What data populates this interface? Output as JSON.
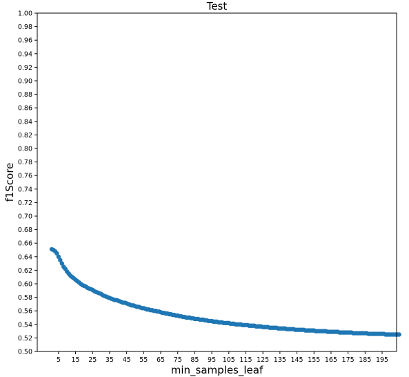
{
  "chart_data": {
    "type": "scatter",
    "title": "Test",
    "xlabel": "min_samples_leaf",
    "ylabel": "f1Score",
    "xlim": [
      -7.5,
      203.5
    ],
    "ylim": [
      0.5,
      1.0
    ],
    "x_ticks": [
      5,
      15,
      25,
      35,
      45,
      55,
      65,
      75,
      85,
      95,
      105,
      115,
      125,
      135,
      145,
      155,
      165,
      175,
      185,
      195
    ],
    "y_ticks": [
      "0.50",
      "0.52",
      "0.54",
      "0.56",
      "0.58",
      "0.60",
      "0.62",
      "0.64",
      "0.66",
      "0.68",
      "0.70",
      "0.72",
      "0.74",
      "0.76",
      "0.78",
      "0.80",
      "0.82",
      "0.84",
      "0.86",
      "0.88",
      "0.90",
      "0.92",
      "0.94",
      "0.96",
      "0.98",
      "1.00"
    ],
    "grid": false,
    "marker_color": "#1f77b4",
    "series": [
      {
        "x_start": 1,
        "x_step": 1,
        "values": [
          0.651,
          0.65,
          0.648,
          0.645,
          0.64,
          0.635,
          0.63,
          0.625,
          0.622,
          0.618,
          0.615,
          0.612,
          0.61,
          0.608,
          0.606,
          0.604,
          0.602,
          0.6,
          0.598,
          0.597,
          0.596,
          0.594,
          0.593,
          0.592,
          0.591,
          0.589,
          0.588,
          0.587,
          0.586,
          0.585,
          0.583,
          0.582,
          0.581,
          0.58,
          0.579,
          0.578,
          0.577,
          0.576,
          0.576,
          0.575,
          0.574,
          0.573,
          0.572,
          0.572,
          0.571,
          0.57,
          0.569,
          0.568,
          0.568,
          0.567,
          0.566,
          0.566,
          0.565,
          0.564,
          0.564,
          0.563,
          0.562,
          0.562,
          0.561,
          0.561,
          0.56,
          0.56,
          0.559,
          0.559,
          0.558,
          0.557,
          0.557,
          0.556,
          0.556,
          0.555,
          0.555,
          0.554,
          0.554,
          0.553,
          0.553,
          0.552,
          0.552,
          0.551,
          0.551,
          0.55,
          0.55,
          0.55,
          0.549,
          0.549,
          0.548,
          0.548,
          0.548,
          0.547,
          0.547,
          0.547,
          0.546,
          0.546,
          0.545,
          0.545,
          0.545,
          0.544,
          0.544,
          0.544,
          0.543,
          0.543,
          0.543,
          0.542,
          0.542,
          0.542,
          0.542,
          0.541,
          0.541,
          0.541,
          0.54,
          0.54,
          0.54,
          0.54,
          0.539,
          0.539,
          0.539,
          0.539,
          0.538,
          0.538,
          0.538,
          0.538,
          0.537,
          0.537,
          0.537,
          0.537,
          0.536,
          0.536,
          0.536,
          0.536,
          0.535,
          0.535,
          0.535,
          0.535,
          0.535,
          0.534,
          0.534,
          0.534,
          0.534,
          0.534,
          0.533,
          0.533,
          0.533,
          0.533,
          0.533,
          0.532,
          0.532,
          0.532,
          0.532,
          0.532,
          0.532,
          0.531,
          0.531,
          0.531,
          0.531,
          0.531,
          0.531,
          0.53,
          0.53,
          0.53,
          0.53,
          0.53,
          0.53,
          0.53,
          0.529,
          0.529,
          0.529,
          0.529,
          0.529,
          0.529,
          0.529,
          0.528,
          0.528,
          0.528,
          0.528,
          0.528,
          0.528,
          0.528,
          0.528,
          0.527,
          0.527,
          0.527,
          0.527,
          0.527,
          0.527,
          0.527,
          0.527,
          0.527,
          0.526,
          0.526,
          0.526,
          0.526,
          0.526,
          0.526,
          0.526,
          0.526,
          0.526,
          0.526,
          0.525,
          0.525,
          0.525,
          0.525,
          0.525,
          0.525,
          0.525,
          0.525,
          0.525
        ]
      }
    ]
  }
}
